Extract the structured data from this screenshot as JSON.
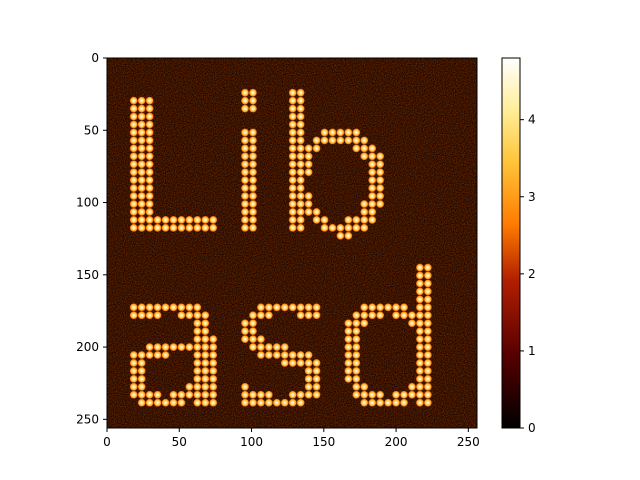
{
  "chart_data": {
    "type": "heatmap",
    "title": "",
    "xlabel": "",
    "ylabel": "",
    "image_size": [
      256,
      256
    ],
    "xlim": [
      0,
      256
    ],
    "ylim": [
      256,
      0
    ],
    "xticks": [
      0,
      50,
      100,
      150,
      200,
      250
    ],
    "yticks": [
      0,
      50,
      100,
      150,
      200,
      250
    ],
    "text_rendered": [
      "Lib",
      "asd"
    ],
    "colormap": "afmhot",
    "value_range": [
      0,
      4.8
    ],
    "colorbar_ticks": [
      0,
      1,
      2,
      3,
      4
    ],
    "grid": false,
    "colors": {
      "background": "#1a0500",
      "low": "#000000",
      "mid": "#d43a00",
      "high": "#ffffff"
    }
  }
}
